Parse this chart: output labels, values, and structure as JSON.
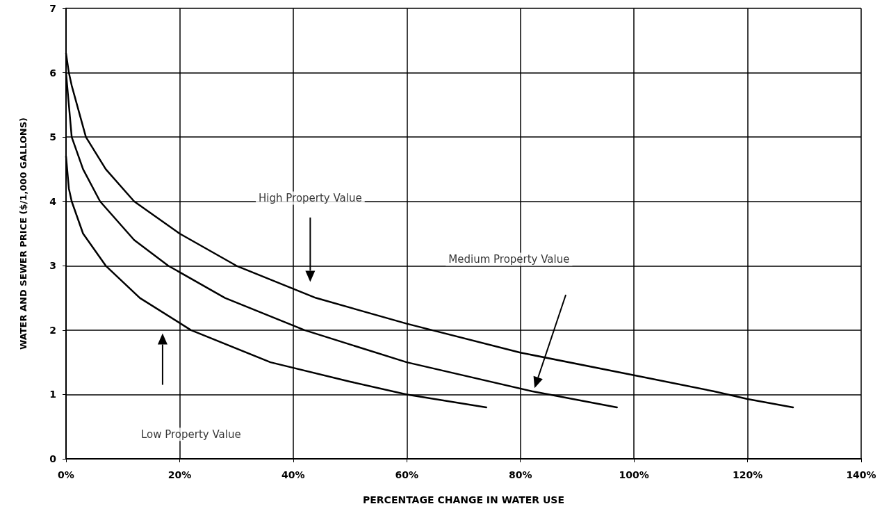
{
  "chart_data": {
    "type": "line",
    "xlabel": "PERCENTAGE CHANGE IN WATER USE",
    "ylabel": "WATER AND SEWER PRICE ($/1,000 GALLONS)",
    "xlim": [
      0,
      140
    ],
    "xticks": [
      {
        "value": 0,
        "label": "0%"
      },
      {
        "value": 20,
        "label": "20%"
      },
      {
        "value": 40,
        "label": "40%"
      },
      {
        "value": 60,
        "label": "60%"
      },
      {
        "value": 80,
        "label": "80%"
      },
      {
        "value": 100,
        "label": "100%"
      },
      {
        "value": 120,
        "label": "120%"
      },
      {
        "value": 140,
        "label": "140%"
      }
    ],
    "ylim": [
      0,
      7
    ],
    "yticks": [
      0,
      1,
      2,
      3,
      4,
      5,
      6,
      7
    ],
    "grid": true,
    "marker": "none",
    "line_style": "solid",
    "series": [
      {
        "color": "#000000",
        "x": [
          0,
          0.5,
          1,
          3.5,
          7,
          12,
          20,
          30,
          44,
          60,
          80,
          100,
          114,
          120,
          128
        ],
        "values": [
          6.3,
          6.0,
          5.8,
          5.0,
          4.5,
          4.0,
          3.5,
          3.0,
          2.5,
          2.1,
          1.65,
          1.3,
          1.05,
          0.93,
          0.8
        ]
      },
      {
        "color": "#000000",
        "x": [
          0,
          0.5,
          1,
          3,
          6,
          12,
          18,
          28,
          42,
          60,
          82,
          97
        ],
        "values": [
          6.0,
          5.5,
          5.0,
          4.5,
          4.0,
          3.4,
          3.0,
          2.5,
          2.0,
          1.5,
          1.05,
          0.8
        ]
      },
      {
        "color": "#000000",
        "x": [
          0,
          0.5,
          1,
          3,
          7,
          13,
          22,
          36,
          50,
          60,
          74
        ],
        "values": [
          4.7,
          4.2,
          4.0,
          3.5,
          3.0,
          2.5,
          2.0,
          1.5,
          1.2,
          1.0,
          0.8
        ]
      }
    ],
    "annotations": [
      "High Property Value",
      "Medium Property Value",
      "Low Property Value"
    ]
  }
}
